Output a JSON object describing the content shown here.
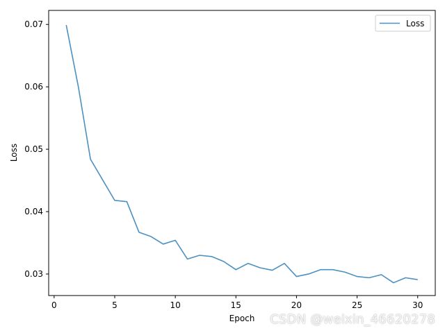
{
  "chart_data": {
    "type": "line",
    "title": "",
    "xlabel": "Epoch",
    "ylabel": "Loss",
    "xlim": [
      -0.45,
      31.45
    ],
    "ylim": [
      0.02655,
      0.07225
    ],
    "xticks": [
      0,
      5,
      10,
      15,
      20,
      25,
      30
    ],
    "yticks": [
      0.03,
      0.04,
      0.05,
      0.06,
      0.07
    ],
    "xtick_labels": [
      "0",
      "5",
      "10",
      "15",
      "20",
      "25",
      "30"
    ],
    "ytick_labels": [
      "0.03",
      "0.04",
      "0.05",
      "0.06",
      "0.07"
    ],
    "grid": false,
    "legend_position": "top-right",
    "series": [
      {
        "name": "Loss",
        "color": "#4a90c2",
        "x": [
          1,
          2,
          3,
          4,
          5,
          6,
          7,
          8,
          9,
          10,
          11,
          12,
          13,
          14,
          15,
          16,
          17,
          18,
          19,
          20,
          21,
          22,
          23,
          24,
          25,
          26,
          27,
          28,
          29,
          30
        ],
        "y": [
          0.0699,
          0.06,
          0.0484,
          0.0451,
          0.0418,
          0.0416,
          0.0367,
          0.036,
          0.0348,
          0.0354,
          0.0324,
          0.033,
          0.0328,
          0.032,
          0.0307,
          0.0317,
          0.031,
          0.0306,
          0.0317,
          0.0296,
          0.03,
          0.0307,
          0.0307,
          0.0303,
          0.0296,
          0.0294,
          0.0299,
          0.0286,
          0.0294,
          0.0291
        ]
      }
    ]
  },
  "watermark": "CSDN @weixin_46620278"
}
